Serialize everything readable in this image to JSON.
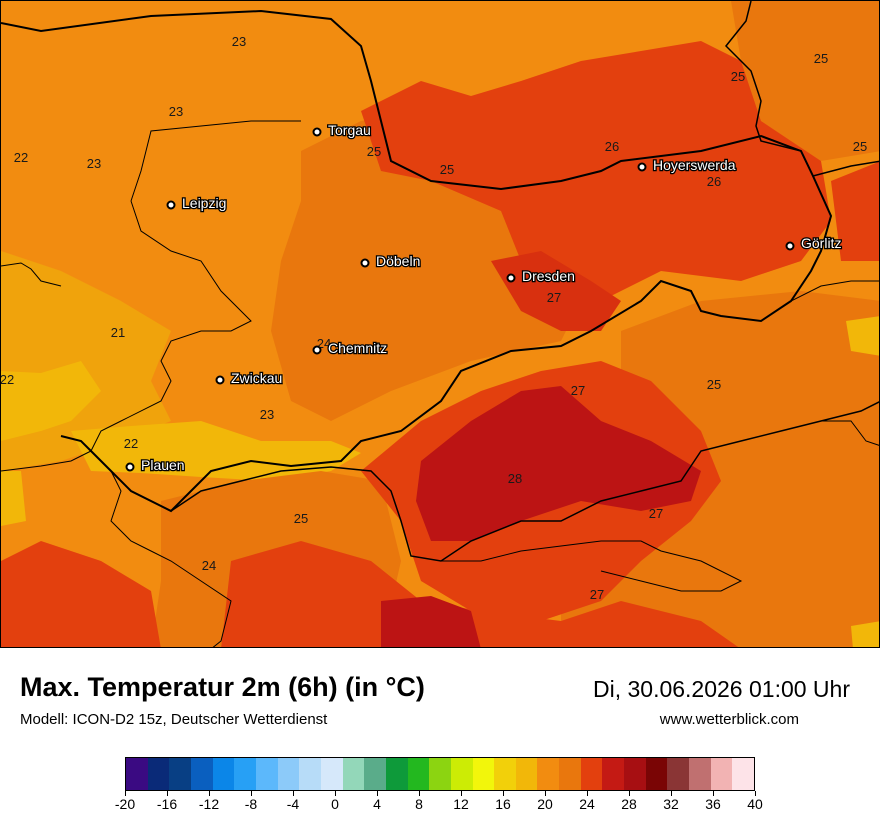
{
  "title": "Max. Temperatur 2m (6h) (in °C)",
  "model": "Modell: ICON-D2 15z, Deutscher Wetterdienst",
  "datetime": "Di, 30.06.2026 01:00 Uhr",
  "website": "www.wetterblick.com",
  "colors": {
    "t21": "#f0a30c",
    "t22": "#f2b709",
    "t23": "#f28c10",
    "t25": "#e9770d",
    "t26": "#e3400e",
    "t27": "#d8300f",
    "t28": "#bc1414",
    "boundary": "#000000"
  },
  "cities": [
    {
      "name": "Torgau"
    },
    {
      "name": "Leipzig"
    },
    {
      "name": "Hoyerswerda"
    },
    {
      "name": "Döbeln"
    },
    {
      "name": "Dresden"
    },
    {
      "name": "Görlitz"
    },
    {
      "name": "Chemnitz"
    },
    {
      "name": "Zwickau"
    },
    {
      "name": "Plauen"
    }
  ],
  "isotherm_labels": [
    "23",
    "23",
    "23",
    "22",
    "25",
    "25",
    "26",
    "26",
    "25",
    "25",
    "25",
    "27",
    "21",
    "22",
    "24",
    "27",
    "25",
    "23",
    "22",
    "28",
    "27",
    "25",
    "24",
    "27"
  ],
  "colorbar": {
    "colors": [
      "#3a0a82",
      "#0a2a78",
      "#083f84",
      "#0a5fbf",
      "#0b86e8",
      "#27a0f5",
      "#5cb8fb",
      "#8ccaf9",
      "#b7dcf8",
      "#d6e8fa",
      "#93d7b9",
      "#5aac8a",
      "#0e9a3a",
      "#23b81f",
      "#8cd411",
      "#ccec05",
      "#f2f60b",
      "#f2d00a",
      "#f2b709",
      "#f28c10",
      "#e9770d",
      "#e3400e",
      "#c41a14",
      "#a70f12",
      "#7a0505",
      "#8a3535",
      "#c07070",
      "#f2b3b3",
      "#fde3e8"
    ],
    "ticks": [
      "-20",
      "-16",
      "-12",
      "-8",
      "-4",
      "0",
      "4",
      "8",
      "12",
      "16",
      "20",
      "24",
      "28",
      "32",
      "36",
      "40"
    ]
  }
}
